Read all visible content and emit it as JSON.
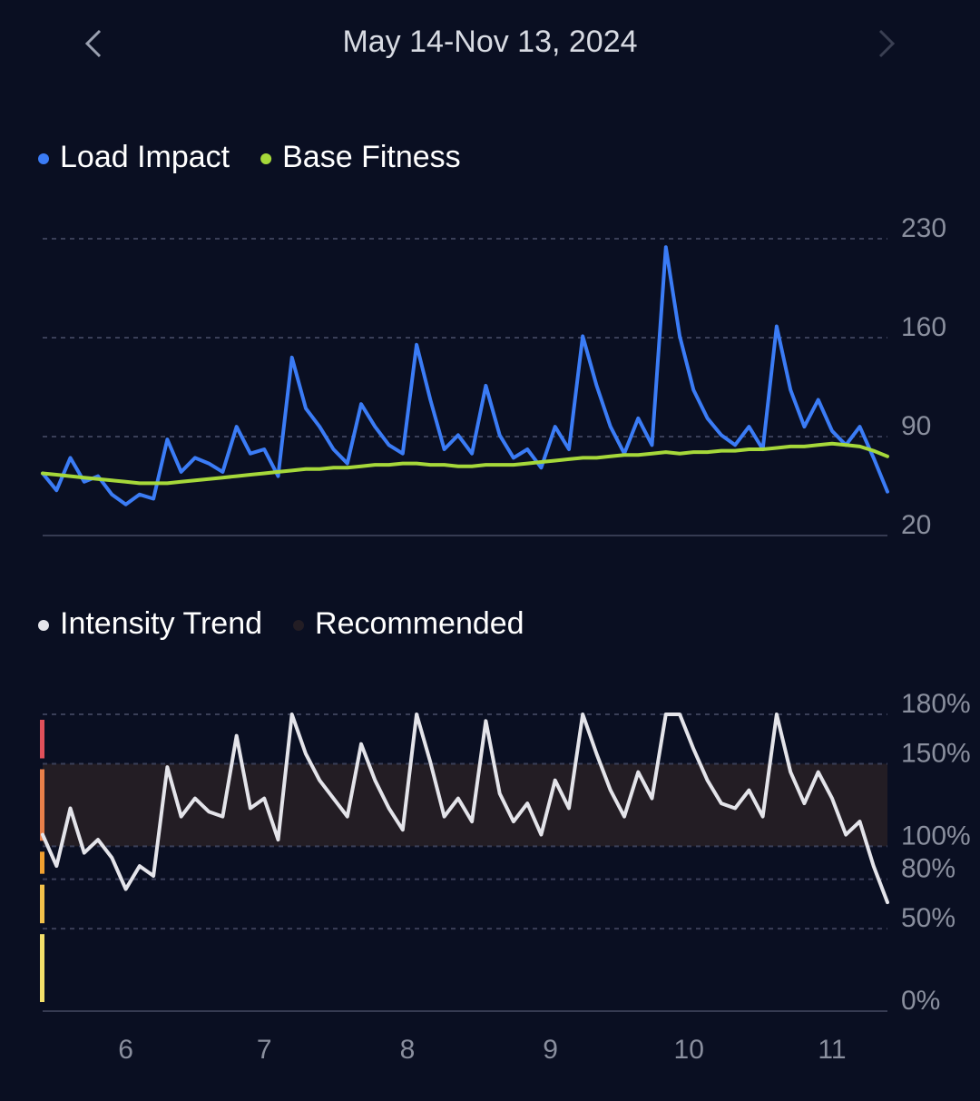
{
  "header": {
    "title": "May 14-Nov 13, 2024"
  },
  "chart_data": [
    {
      "type": "line",
      "x": [
        0,
        3,
        6,
        9,
        12,
        15,
        18,
        21,
        24,
        27,
        30,
        33,
        36,
        39,
        42,
        45,
        48,
        51,
        54,
        57,
        60,
        63,
        66,
        69,
        72,
        75,
        78,
        81,
        84,
        87,
        90,
        93,
        96,
        99,
        102,
        105,
        108,
        111,
        114,
        117,
        120,
        123,
        126,
        129,
        132,
        135,
        138,
        141,
        144,
        147,
        150,
        153,
        156,
        159,
        162,
        165,
        168,
        171,
        174,
        177,
        180,
        183
      ],
      "series": [
        {
          "name": "Load Impact",
          "color": "#3b7cf6",
          "values": [
            64,
            52,
            75,
            58,
            62,
            49,
            42,
            49,
            46,
            88,
            65,
            75,
            71,
            65,
            97,
            78,
            81,
            62,
            146,
            110,
            97,
            81,
            71,
            113,
            97,
            84,
            78,
            155,
            116,
            81,
            91,
            78,
            126,
            91,
            75,
            81,
            68,
            97,
            81,
            161,
            126,
            97,
            78,
            103,
            84,
            224,
            161,
            123,
            103,
            91,
            84,
            97,
            81,
            168,
            123,
            97,
            116,
            94,
            84,
            97,
            75,
            51
          ]
        },
        {
          "name": "Base Fitness",
          "color": "#a6d83a",
          "values": [
            64,
            63,
            62,
            61,
            60,
            59,
            58,
            57,
            57,
            57,
            58,
            59,
            60,
            61,
            62,
            63,
            64,
            65,
            66,
            67,
            67,
            68,
            68,
            69,
            70,
            70,
            71,
            71,
            70,
            70,
            69,
            69,
            70,
            70,
            70,
            71,
            72,
            73,
            74,
            75,
            75,
            76,
            77,
            77,
            78,
            79,
            78,
            79,
            79,
            80,
            80,
            81,
            81,
            82,
            83,
            83,
            84,
            85,
            84,
            83,
            80,
            76
          ]
        }
      ],
      "xlim": [
        0,
        183
      ],
      "ylim": [
        20,
        230
      ],
      "yticks": [
        20,
        90,
        160,
        230
      ],
      "grid": true,
      "legend": "top-left"
    },
    {
      "type": "line",
      "x": [
        0,
        3,
        6,
        9,
        12,
        15,
        18,
        21,
        24,
        27,
        30,
        33,
        36,
        39,
        42,
        45,
        48,
        51,
        54,
        57,
        60,
        63,
        66,
        69,
        72,
        75,
        78,
        81,
        84,
        87,
        90,
        93,
        96,
        99,
        102,
        105,
        108,
        111,
        114,
        117,
        120,
        123,
        126,
        129,
        132,
        135,
        138,
        141,
        144,
        147,
        150,
        153,
        156,
        159,
        162,
        165,
        168,
        171,
        174,
        177,
        180,
        183
      ],
      "series": [
        {
          "name": "Intensity Trend",
          "color": "#e4e4ea",
          "values": [
            107,
            88,
            123,
            96,
            104,
            93,
            74,
            88,
            82,
            148,
            118,
            129,
            121,
            118,
            167,
            123,
            129,
            104,
            180,
            156,
            140,
            129,
            118,
            162,
            140,
            123,
            110,
            180,
            151,
            118,
            129,
            115,
            176,
            132,
            115,
            126,
            107,
            140,
            123,
            180,
            156,
            134,
            118,
            145,
            129,
            180,
            180,
            159,
            140,
            126,
            123,
            134,
            118,
            180,
            145,
            126,
            145,
            129,
            107,
            115,
            88,
            66
          ]
        }
      ],
      "band": {
        "name": "Recommended",
        "range": [
          100,
          150
        ],
        "color": "#231d24"
      },
      "zone_colors": [
        "#f4e06a",
        "#f2c14a",
        "#f0a030",
        "#e8804a",
        "#e0505a"
      ],
      "xlim": [
        0,
        183
      ],
      "xticks": [
        {
          "value": 18,
          "label": "6"
        },
        {
          "value": 48,
          "label": "7"
        },
        {
          "value": 79,
          "label": "8"
        },
        {
          "value": 110,
          "label": "9"
        },
        {
          "value": 140,
          "label": "10"
        },
        {
          "value": 171,
          "label": "11"
        }
      ],
      "ylim": [
        0,
        180
      ],
      "yticks": [
        {
          "value": 0,
          "label": "0%"
        },
        {
          "value": 50,
          "label": "50%"
        },
        {
          "value": 80,
          "label": "80%"
        },
        {
          "value": 100,
          "label": "100%"
        },
        {
          "value": 150,
          "label": "150%"
        },
        {
          "value": 180,
          "label": "180%"
        }
      ],
      "grid": true,
      "legend": "top-left"
    }
  ]
}
